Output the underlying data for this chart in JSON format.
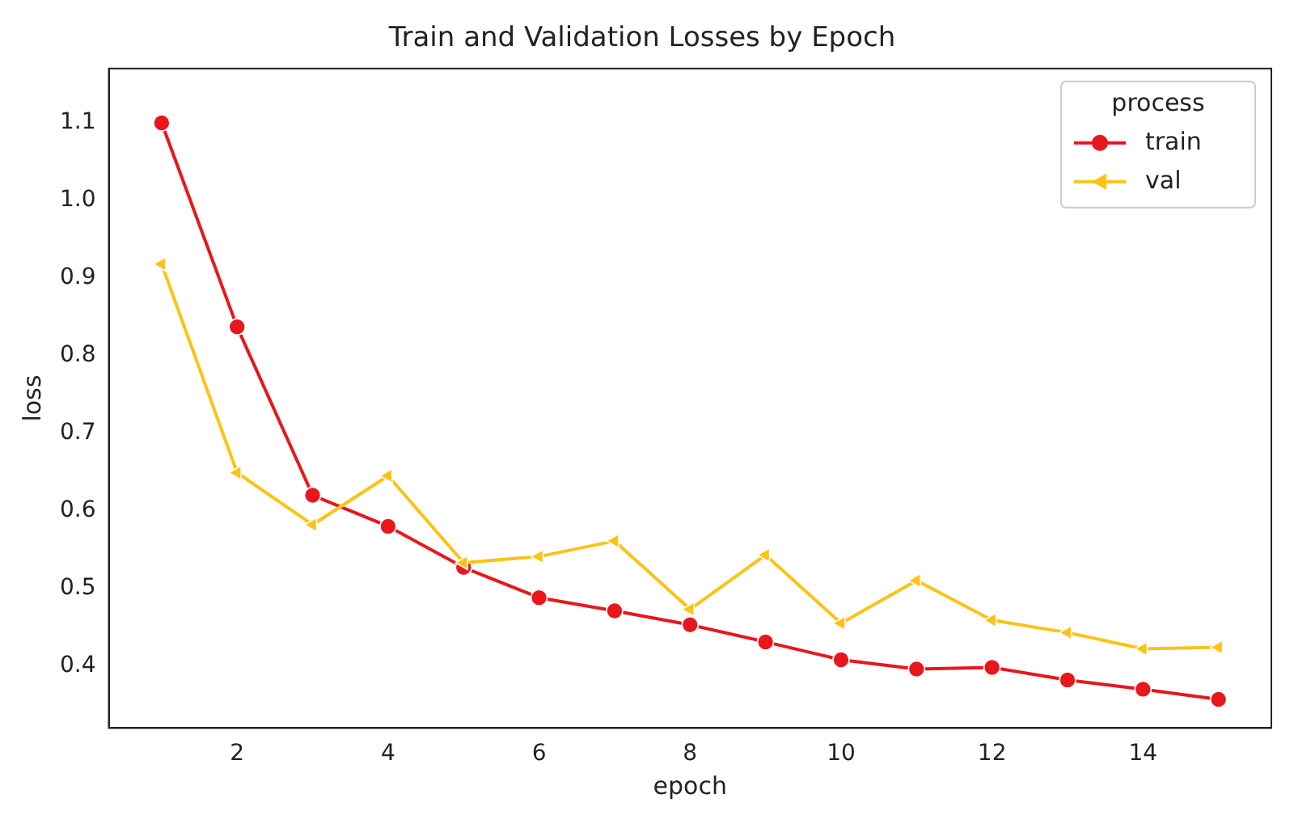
{
  "chart_data": {
    "type": "line",
    "title": "Train and Validation Losses by Epoch",
    "xlabel": "epoch",
    "ylabel": "loss",
    "legend_title": "process",
    "legend": "top right",
    "grid": false,
    "x": [
      1,
      2,
      3,
      4,
      5,
      6,
      7,
      8,
      9,
      10,
      11,
      12,
      13,
      14,
      15
    ],
    "series": [
      {
        "name": "train",
        "color": "#e8171b",
        "marker": "circle",
        "values": [
          1.1,
          0.837,
          0.62,
          0.58,
          0.527,
          0.488,
          0.471,
          0.453,
          0.431,
          0.408,
          0.396,
          0.398,
          0.382,
          0.37,
          0.357
        ]
      },
      {
        "name": "val",
        "color": "#fcc314",
        "marker": "triangle",
        "values": [
          0.918,
          0.649,
          0.582,
          0.645,
          0.533,
          0.541,
          0.561,
          0.473,
          0.543,
          0.455,
          0.51,
          0.459,
          0.443,
          0.422,
          0.424
        ]
      }
    ],
    "xlim": [
      0.3,
      15.7
    ],
    "xticks": [
      2,
      4,
      6,
      8,
      10,
      12,
      14
    ],
    "ylim": [
      0.32,
      1.17
    ],
    "yticks": [
      0.4,
      0.5,
      0.6,
      0.7,
      0.8,
      0.9,
      {
        "value": 1,
        "label": "1.0"
      },
      1.1
    ]
  }
}
